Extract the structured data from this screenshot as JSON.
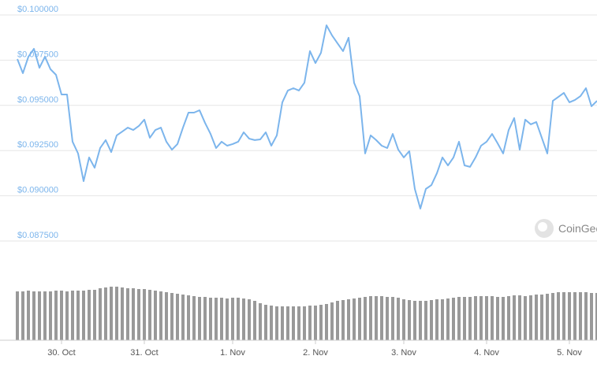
{
  "chart_data": {
    "type": "line",
    "watermark": "CoinGecko",
    "ylim": [
      0.0875,
      0.1
    ],
    "yticks": [
      {
        "value": 0.0875,
        "label": "$0.087500"
      },
      {
        "value": 0.09,
        "label": "$0.090000"
      },
      {
        "value": 0.0925,
        "label": "$0.092500"
      },
      {
        "value": 0.095,
        "label": "$0.095000"
      },
      {
        "value": 0.0975,
        "label": "$0.097500"
      },
      {
        "value": 0.1,
        "label": "$0.100000"
      }
    ],
    "grid": true,
    "categories": [
      null,
      null,
      null,
      null,
      null,
      null,
      null,
      null,
      "30. Oct",
      null,
      null,
      null,
      null,
      null,
      null,
      null,
      null,
      null,
      null,
      null,
      null,
      null,
      null,
      "31. Oct",
      null,
      null,
      null,
      null,
      null,
      null,
      null,
      null,
      null,
      null,
      null,
      null,
      null,
      null,
      null,
      "1. Nov",
      null,
      null,
      null,
      null,
      null,
      null,
      null,
      null,
      null,
      null,
      null,
      null,
      null,
      null,
      "2. Nov",
      null,
      null,
      null,
      null,
      null,
      null,
      null,
      null,
      null,
      null,
      null,
      null,
      null,
      null,
      null,
      "3. Nov",
      null,
      null,
      null,
      null,
      null,
      null,
      null,
      null,
      null,
      null,
      null,
      null,
      null,
      null,
      "4. Nov",
      null,
      null,
      null,
      null,
      null,
      null,
      null,
      null,
      null,
      null,
      null,
      null,
      null,
      null,
      "5. Nov",
      null,
      null,
      null,
      null,
      null
    ],
    "series": [
      {
        "color": "#7cb5ec",
        "values": [
          0.09756,
          0.09678,
          0.09769,
          0.09813,
          0.09708,
          0.09769,
          0.097,
          0.09669,
          0.0956,
          0.0956,
          0.09299,
          0.09234,
          0.09081,
          0.09212,
          0.09155,
          0.09264,
          0.09308,
          0.09242,
          0.09334,
          0.09355,
          0.09377,
          0.09364,
          0.09386,
          0.09421,
          0.09321,
          0.09364,
          0.09377,
          0.09299,
          0.09255,
          0.09286,
          0.09377,
          0.0946,
          0.0946,
          0.09473,
          0.09403,
          0.09342,
          0.09264,
          0.09299,
          0.09277,
          0.09286,
          0.09299,
          0.09351,
          0.09316,
          0.09308,
          0.09312,
          0.09351,
          0.09277,
          0.09334,
          0.09517,
          0.09582,
          0.09595,
          0.09582,
          0.09625,
          0.098,
          0.09734,
          0.09791,
          0.09943,
          0.09887,
          0.09843,
          0.098,
          0.09874,
          0.09625,
          0.09551,
          0.09234,
          0.09334,
          0.09308,
          0.09277,
          0.09264,
          0.09342,
          0.09255,
          0.09212,
          0.09247,
          0.09038,
          0.08929,
          0.09038,
          0.09059,
          0.09125,
          0.09212,
          0.09168,
          0.09212,
          0.09299,
          0.09168,
          0.0916,
          0.09212,
          0.09277,
          0.09299,
          0.09342,
          0.0929,
          0.09234,
          0.09364,
          0.0943,
          0.09255,
          0.09421,
          0.09395,
          0.09408,
          0.09321,
          0.09234,
          0.09525,
          0.09547,
          0.09569,
          0.09517,
          0.0953,
          0.09551,
          0.09595,
          0.09495,
          0.09525
        ]
      }
    ],
    "volume_color": "#999999",
    "volume": [
      62,
      62,
      63,
      62,
      62,
      62,
      62,
      63,
      63,
      62,
      63,
      63,
      63,
      64,
      64,
      66,
      67,
      68,
      68,
      67,
      66,
      66,
      65,
      65,
      64,
      63,
      62,
      61,
      60,
      59,
      58,
      57,
      56,
      55,
      55,
      54,
      54,
      54,
      53,
      54,
      54,
      53,
      52,
      50,
      47,
      45,
      44,
      43,
      43,
      43,
      43,
      43,
      43,
      44,
      44,
      45,
      46,
      48,
      50,
      51,
      52,
      53,
      54,
      55,
      56,
      56,
      56,
      55,
      55,
      54,
      52,
      51,
      50,
      50,
      50,
      51,
      52,
      52,
      53,
      54,
      55,
      55,
      55,
      56,
      56,
      56,
      56,
      55,
      55,
      56,
      57,
      57,
      56,
      57,
      58,
      58,
      59,
      60,
      61,
      61,
      61,
      61,
      61,
      61,
      60,
      60
    ]
  }
}
